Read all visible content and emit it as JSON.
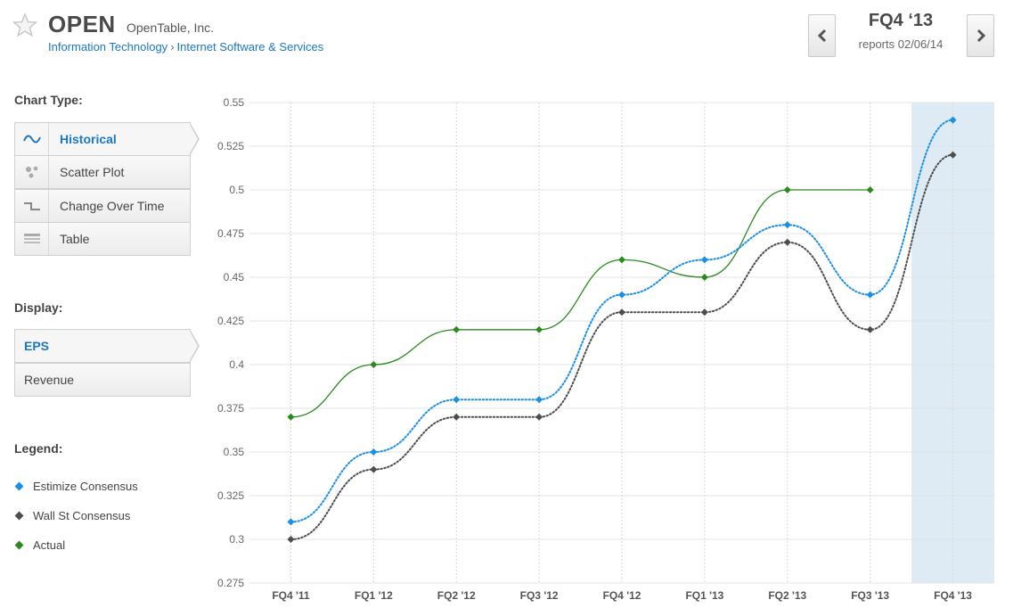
{
  "header": {
    "ticker": "OPEN",
    "company": "OpenTable, Inc.",
    "sector": "Information Technology",
    "separator": "›",
    "industry": "Internet Software & Services",
    "period": "FQ4 ‘13",
    "reports": "reports 02/06/14",
    "prev_icon": "chevron-left-icon",
    "next_icon": "chevron-right-icon",
    "favorite_icon": "star-icon"
  },
  "sidebar": {
    "chart_type_label": "Chart Type:",
    "chart_types": [
      {
        "label": "Historical",
        "icon": "wave-icon",
        "active": true
      },
      {
        "label": "Scatter Plot",
        "icon": "scatter-icon",
        "active": false
      },
      {
        "label": "Change Over Time",
        "icon": "step-icon",
        "active": false
      },
      {
        "label": "Table",
        "icon": "table-icon",
        "active": false
      }
    ],
    "display_label": "Display:",
    "display_options": [
      {
        "label": "EPS",
        "active": true
      },
      {
        "label": "Revenue",
        "active": false
      }
    ],
    "legend_label": "Legend:",
    "legend": [
      {
        "label": "Estimize Consensus",
        "color": "#1a8fe3"
      },
      {
        "label": "Wall St Consensus",
        "color": "#4d4d4d"
      },
      {
        "label": "Actual",
        "color": "#2a8a1e"
      }
    ]
  },
  "chart_data": {
    "type": "line",
    "categories": [
      "FQ4 '11",
      "FQ1 '12",
      "FQ2 '12",
      "FQ3 '12",
      "FQ4 '12",
      "FQ1 '13",
      "FQ2 '13",
      "FQ3 '13",
      "FQ4 '13"
    ],
    "yticks": [
      "0.55",
      "0.525",
      "0.5",
      "0.475",
      "0.45",
      "0.425",
      "0.4",
      "0.375",
      "0.35",
      "0.325",
      "0.3",
      "0.275"
    ],
    "ylim": [
      0.275,
      0.55
    ],
    "highlight_category": "FQ4 '13",
    "series": [
      {
        "name": "Estimize Consensus",
        "color": "#1a8fe3",
        "dash": true,
        "values": [
          0.31,
          0.35,
          0.38,
          0.38,
          0.44,
          0.46,
          0.48,
          0.44,
          0.54
        ]
      },
      {
        "name": "Wall St Consensus",
        "color": "#4d4d4d",
        "dash": true,
        "values": [
          0.3,
          0.34,
          0.37,
          0.37,
          0.43,
          0.43,
          0.47,
          0.42,
          0.52
        ]
      },
      {
        "name": "Actual",
        "color": "#2a8a1e",
        "dash": false,
        "values": [
          0.37,
          0.4,
          0.42,
          0.42,
          0.46,
          0.45,
          0.5,
          0.5,
          null
        ]
      }
    ]
  }
}
